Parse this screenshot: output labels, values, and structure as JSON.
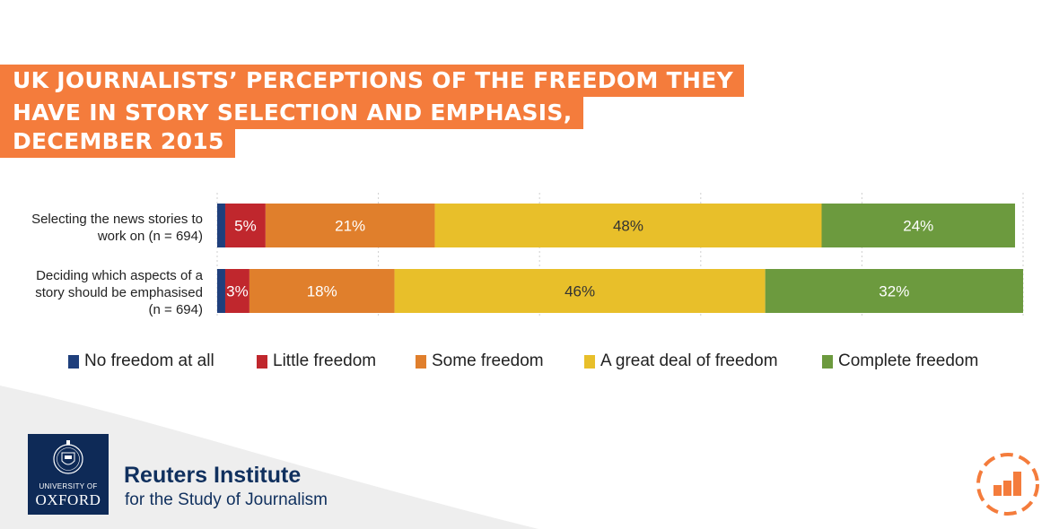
{
  "title": {
    "lines": [
      "UK JOURNALISTS’ PERCEPTIONS OF THE FREEDOM THEY",
      "HAVE IN STORY SELECTION AND EMPHASIS,",
      "DECEMBER 2015"
    ]
  },
  "chart_data": {
    "type": "bar",
    "orientation": "horizontal-stacked-100",
    "title": "UK JOURNALISTS’ PERCEPTIONS OF THE FREEDOM THEY HAVE IN STORY SELECTION AND EMPHASIS, DECEMBER 2015",
    "categories": [
      [
        "Selecting the news stories to",
        "work on (n = 694)"
      ],
      [
        "Deciding which aspects of a",
        "story should be emphasised",
        "(n = 694)"
      ]
    ],
    "xlim": [
      0,
      100
    ],
    "grid": true,
    "legend_position": "bottom",
    "series": [
      {
        "name": "No freedom at all",
        "color": "#1f3f7c",
        "values": [
          1,
          1
        ],
        "labels": [
          "",
          ""
        ]
      },
      {
        "name": "Little freedom",
        "color": "#c0272d",
        "values": [
          5,
          3
        ],
        "labels": [
          "5%",
          "3%"
        ]
      },
      {
        "name": "Some freedom",
        "color": "#e07f2c",
        "values": [
          21,
          18
        ],
        "labels": [
          "21%",
          "18%"
        ]
      },
      {
        "name": "A great deal of freedom",
        "color": "#e8bf2a",
        "values": [
          48,
          46
        ],
        "labels": [
          "48%",
          "46%"
        ]
      },
      {
        "name": "Complete freedom",
        "color": "#6c9a3e",
        "values": [
          24,
          32
        ],
        "labels": [
          "24%",
          "32%"
        ]
      }
    ]
  },
  "footer": {
    "oxford_top": "UNIVERSITY OF",
    "oxford_name": "OXFORD",
    "institute_name": "Reuters Institute",
    "institute_sub": "for the Study of Journalism",
    "icon": "bar-chart-badge-icon"
  }
}
